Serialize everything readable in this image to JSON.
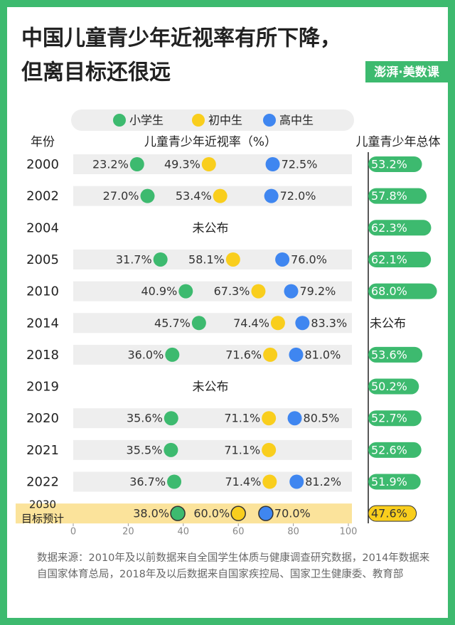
{
  "chart_data": [
    {
      "type": "dot",
      "title": [
        "中国儿童青少年近视率有所下降，",
        "但离目标还很远"
      ],
      "logo": "澎湃·美数课",
      "category_header": "年份",
      "x_label": "儿童青少年近视率（%）",
      "categories": [
        "2000",
        "2002",
        "2004",
        "2005",
        "2010",
        "2014",
        "2018",
        "2019",
        "2020",
        "2021",
        "2022",
        "2030"
      ],
      "target_label": "目标预计",
      "unpublished_label": "未公布",
      "series": [
        {
          "name": "小学生",
          "color": "#3dba6f",
          "values": [
            23.2,
            27.0,
            null,
            31.7,
            40.9,
            45.7,
            36.0,
            null,
            35.6,
            35.5,
            36.7,
            38.0
          ],
          "value_labels": [
            "23.2%",
            "27.0%",
            null,
            "31.7%",
            "40.9%",
            "45.7%",
            "36.0%",
            null,
            "35.6%",
            "35.5%",
            "36.7%",
            "38.0%"
          ]
        },
        {
          "name": "初中生",
          "color": "#f9ce1d",
          "values": [
            49.3,
            53.4,
            null,
            58.1,
            67.3,
            74.4,
            71.6,
            null,
            71.1,
            71.1,
            71.4,
            60.0
          ],
          "value_labels": [
            "49.3%",
            "53.4%",
            null,
            "58.1%",
            "67.3%",
            "74.4%",
            "71.6%",
            null,
            "71.1%",
            "71.1%",
            "71.4%",
            "60.0%"
          ]
        },
        {
          "name": "高中生",
          "color": "#3f86f0",
          "values": [
            72.5,
            72.0,
            null,
            76.0,
            79.2,
            83.3,
            81.0,
            null,
            80.5,
            null,
            81.2,
            70.0
          ],
          "value_labels": [
            "72.5%",
            "72.0%",
            null,
            "76.0%",
            "79.2%",
            "83.3%",
            "81.0%",
            null,
            "80.5%",
            null,
            "81.2%",
            "70.0%"
          ]
        }
      ],
      "xlim": [
        0,
        100
      ],
      "xticks": [
        0,
        20,
        40,
        60,
        80,
        100
      ],
      "source": "数据来源：2010年及以前数据来自全国学生体质与健康调查研究数据，2014年数据来自国家体育总局，2018年及以后数据来自国家疾控局、国家卫生健康委、教育部"
    },
    {
      "type": "bar",
      "title": "儿童青少年总体",
      "color": "#3dba6f",
      "target_color": "#f9ce1d",
      "values": [
        53.2,
        57.8,
        62.3,
        62.1,
        68.0,
        null,
        53.6,
        50.2,
        52.7,
        52.6,
        51.9,
        47.6
      ],
      "value_labels": [
        "53.2%",
        "57.8%",
        "62.3%",
        "62.1%",
        "68.0%",
        null,
        "53.6%",
        "50.2%",
        "52.7%",
        "52.6%",
        "51.9%",
        "47.6%"
      ]
    }
  ]
}
